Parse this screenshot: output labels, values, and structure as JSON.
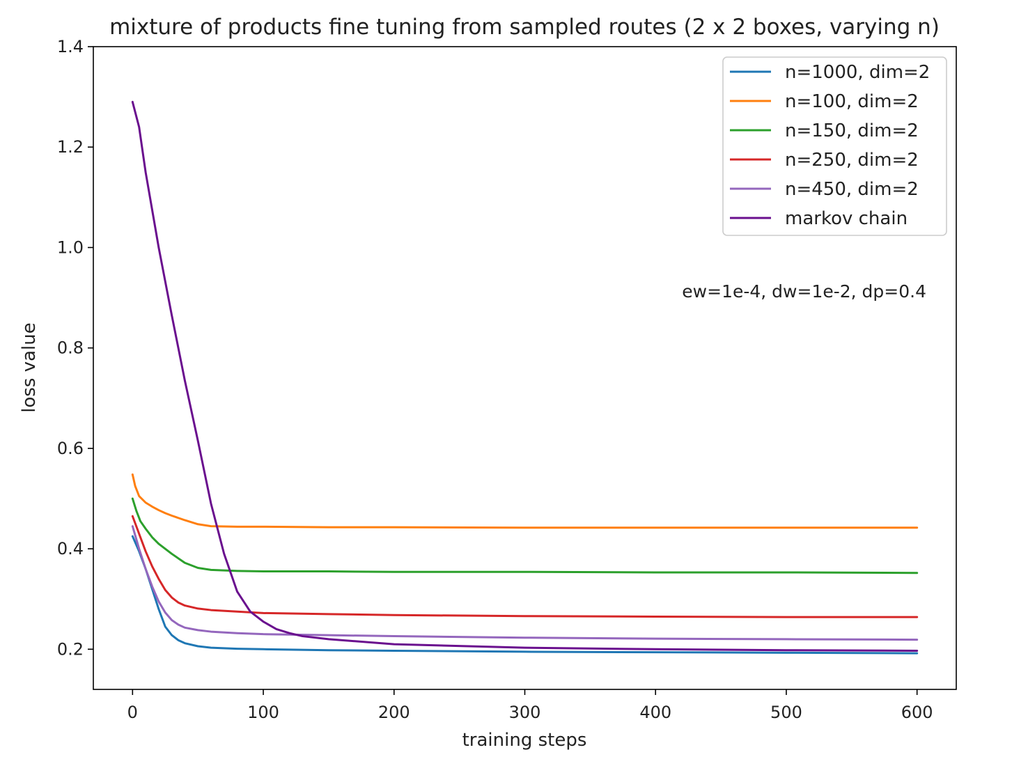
{
  "chart_data": {
    "type": "line",
    "title": "mixture of products fine tuning from sampled routes (2 x 2 boxes, varying n)",
    "xlabel": "training steps",
    "ylabel": "loss value",
    "xlim": [
      -30,
      630
    ],
    "ylim": [
      0.12,
      1.4
    ],
    "xticks": [
      0,
      100,
      200,
      300,
      400,
      500,
      600
    ],
    "yticks": [
      0.2,
      0.4,
      0.6,
      0.8,
      1.0,
      1.2,
      1.4
    ],
    "ytick_labels": [
      "0.2",
      "0.4",
      "0.6",
      "0.8",
      "1.0",
      "1.2",
      "1.4"
    ],
    "grid": false,
    "legend_position": "top-right",
    "annotation": "ew=1e-4, dw=1e-2, dp=0.4",
    "series": [
      {
        "name": "n=1000, dim=2",
        "color": "#1f77b4",
        "x": [
          0,
          5,
          10,
          15,
          20,
          25,
          30,
          35,
          40,
          50,
          60,
          70,
          80,
          100,
          150,
          200,
          300,
          400,
          500,
          600
        ],
        "y": [
          0.425,
          0.395,
          0.36,
          0.32,
          0.28,
          0.245,
          0.228,
          0.218,
          0.212,
          0.206,
          0.203,
          0.202,
          0.201,
          0.2,
          0.198,
          0.197,
          0.195,
          0.194,
          0.193,
          0.192
        ]
      },
      {
        "name": "n=100, dim=2",
        "color": "#ff7f0e",
        "x": [
          0,
          2,
          5,
          10,
          15,
          20,
          25,
          30,
          40,
          50,
          60,
          80,
          100,
          150,
          200,
          300,
          400,
          500,
          600
        ],
        "y": [
          0.548,
          0.525,
          0.505,
          0.492,
          0.484,
          0.477,
          0.471,
          0.466,
          0.457,
          0.449,
          0.445,
          0.444,
          0.444,
          0.443,
          0.443,
          0.442,
          0.442,
          0.442,
          0.442
        ]
      },
      {
        "name": "n=150, dim=2",
        "color": "#2ca02c",
        "x": [
          0,
          3,
          6,
          10,
          15,
          20,
          30,
          40,
          50,
          60,
          80,
          100,
          150,
          200,
          300,
          400,
          500,
          600
        ],
        "y": [
          0.5,
          0.475,
          0.455,
          0.44,
          0.423,
          0.41,
          0.39,
          0.372,
          0.362,
          0.358,
          0.356,
          0.355,
          0.355,
          0.354,
          0.354,
          0.353,
          0.353,
          0.352
        ]
      },
      {
        "name": "n=250, dim=2",
        "color": "#d62728",
        "x": [
          0,
          5,
          10,
          15,
          20,
          25,
          30,
          35,
          40,
          50,
          60,
          80,
          100,
          150,
          200,
          300,
          400,
          500,
          600
        ],
        "y": [
          0.465,
          0.43,
          0.395,
          0.365,
          0.34,
          0.318,
          0.303,
          0.293,
          0.287,
          0.281,
          0.278,
          0.275,
          0.272,
          0.27,
          0.268,
          0.266,
          0.265,
          0.264,
          0.264
        ]
      },
      {
        "name": "n=450, dim=2",
        "color": "#9467bd",
        "x": [
          0,
          5,
          10,
          15,
          20,
          25,
          30,
          35,
          40,
          50,
          60,
          80,
          100,
          150,
          200,
          300,
          400,
          500,
          600
        ],
        "y": [
          0.445,
          0.4,
          0.36,
          0.325,
          0.295,
          0.273,
          0.258,
          0.249,
          0.243,
          0.238,
          0.235,
          0.232,
          0.23,
          0.228,
          0.226,
          0.223,
          0.221,
          0.22,
          0.219
        ]
      },
      {
        "name": "markov chain",
        "color": "#6a0f8e",
        "x": [
          0,
          5,
          10,
          20,
          30,
          40,
          50,
          60,
          70,
          80,
          90,
          100,
          110,
          120,
          130,
          150,
          200,
          300,
          400,
          500,
          600
        ],
        "y": [
          1.29,
          1.24,
          1.15,
          1.0,
          0.865,
          0.735,
          0.615,
          0.49,
          0.39,
          0.315,
          0.275,
          0.255,
          0.24,
          0.232,
          0.226,
          0.22,
          0.21,
          0.203,
          0.2,
          0.198,
          0.197
        ]
      }
    ]
  }
}
